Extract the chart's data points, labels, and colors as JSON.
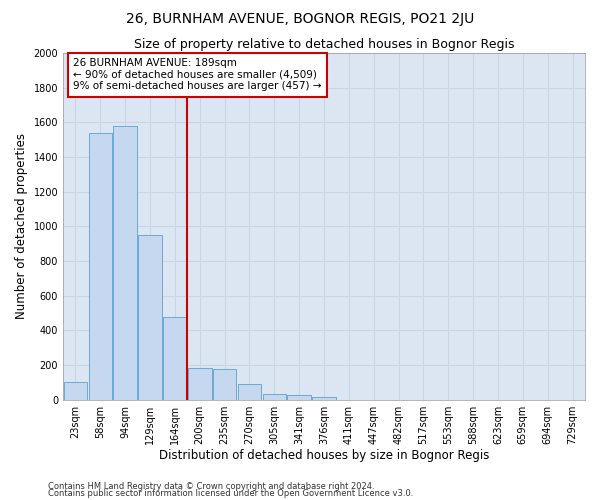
{
  "title": "26, BURNHAM AVENUE, BOGNOR REGIS, PO21 2JU",
  "subtitle": "Size of property relative to detached houses in Bognor Regis",
  "xlabel": "Distribution of detached houses by size in Bognor Regis",
  "ylabel": "Number of detached properties",
  "footnote1": "Contains HM Land Registry data © Crown copyright and database right 2024.",
  "footnote2": "Contains public sector information licensed under the Open Government Licence v3.0.",
  "annotation_line1": "26 BURNHAM AVENUE: 189sqm",
  "annotation_line2": "← 90% of detached houses are smaller (4,509)",
  "annotation_line3": "9% of semi-detached houses are larger (457) →",
  "categories": [
    "23sqm",
    "58sqm",
    "94sqm",
    "129sqm",
    "164sqm",
    "200sqm",
    "235sqm",
    "270sqm",
    "305sqm",
    "341sqm",
    "376sqm",
    "411sqm",
    "447sqm",
    "482sqm",
    "517sqm",
    "553sqm",
    "588sqm",
    "623sqm",
    "659sqm",
    "694sqm",
    "729sqm"
  ],
  "values": [
    100,
    1540,
    1580,
    950,
    480,
    185,
    180,
    90,
    35,
    25,
    15,
    0,
    0,
    0,
    0,
    0,
    0,
    0,
    0,
    0,
    0
  ],
  "bar_color": "#c5d8ef",
  "bar_edge_color": "#6aaad4",
  "vline_color": "#cc0000",
  "vline_x": 4.5,
  "ylim": [
    0,
    2000
  ],
  "yticks": [
    0,
    200,
    400,
    600,
    800,
    1000,
    1200,
    1400,
    1600,
    1800,
    2000
  ],
  "annotation_box_edge_color": "#cc0000",
  "annotation_box_fill": "#ffffff",
  "grid_color": "#c8d4e8",
  "bg_color": "#dce6f2",
  "fig_bg_color": "#ffffff",
  "title_fontsize": 10,
  "subtitle_fontsize": 9,
  "axis_label_fontsize": 8.5,
  "tick_fontsize": 7,
  "annotation_fontsize": 7.5,
  "footnote_fontsize": 6
}
